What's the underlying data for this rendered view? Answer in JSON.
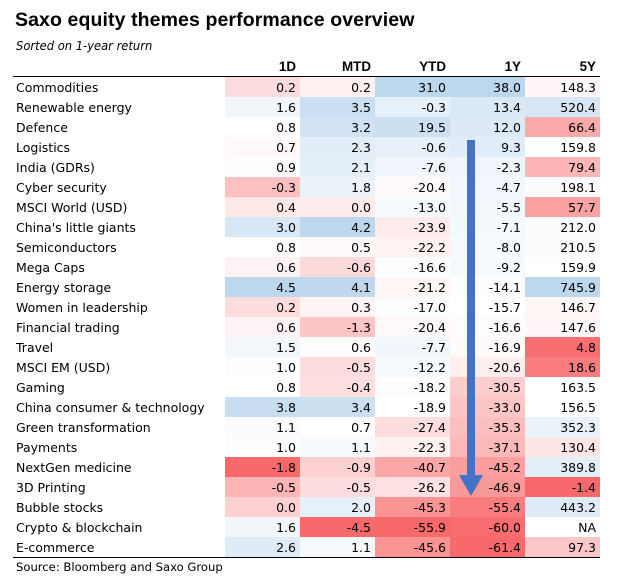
{
  "title": "Saxo equity themes performance overview",
  "subtitle": "Sorted on 1-year return",
  "source": "Source: Bloomberg and Saxo Group",
  "annotation": {
    "icon": "down-arrow-icon",
    "color": "#4472c4"
  },
  "colors": {
    "positive": "#bdd7ee",
    "neutral": "#ffffff",
    "negative": "#f8696b"
  },
  "columns": [
    "1D",
    "MTD",
    "YTD",
    "1Y",
    "5Y"
  ],
  "rows": [
    {
      "theme": "Commodities",
      "values": [
        "0.2",
        "0.2",
        "31.0",
        "38.0",
        "148.3"
      ]
    },
    {
      "theme": "Renewable energy",
      "values": [
        "1.6",
        "3.5",
        "-0.3",
        "13.4",
        "520.4"
      ]
    },
    {
      "theme": "Defence",
      "values": [
        "0.8",
        "3.2",
        "19.5",
        "12.0",
        "66.4"
      ]
    },
    {
      "theme": "Logistics",
      "values": [
        "0.7",
        "2.3",
        "-0.6",
        "9.3",
        "159.8"
      ]
    },
    {
      "theme": "India (GDRs)",
      "values": [
        "0.9",
        "2.1",
        "-7.6",
        "-2.3",
        "79.4"
      ]
    },
    {
      "theme": "Cyber security",
      "values": [
        "-0.3",
        "1.8",
        "-20.4",
        "-4.7",
        "198.1"
      ]
    },
    {
      "theme": "MSCI World (USD)",
      "values": [
        "0.4",
        "0.0",
        "-13.0",
        "-5.5",
        "57.7"
      ]
    },
    {
      "theme": "China's little giants",
      "values": [
        "3.0",
        "4.2",
        "-23.9",
        "-7.1",
        "212.0"
      ]
    },
    {
      "theme": "Semiconductors",
      "values": [
        "0.8",
        "0.5",
        "-22.2",
        "-8.0",
        "210.5"
      ]
    },
    {
      "theme": "Mega Caps",
      "values": [
        "0.6",
        "-0.6",
        "-16.6",
        "-9.2",
        "159.9"
      ]
    },
    {
      "theme": "Energy storage",
      "values": [
        "4.5",
        "4.1",
        "-21.2",
        "-14.1",
        "745.9"
      ]
    },
    {
      "theme": "Women in leadership",
      "values": [
        "0.2",
        "0.3",
        "-17.0",
        "-15.7",
        "146.7"
      ]
    },
    {
      "theme": "Financial trading",
      "values": [
        "0.6",
        "-1.3",
        "-20.4",
        "-16.6",
        "147.6"
      ]
    },
    {
      "theme": "Travel",
      "values": [
        "1.5",
        "0.6",
        "-7.7",
        "-16.9",
        "4.8"
      ]
    },
    {
      "theme": "MSCI EM (USD)",
      "values": [
        "1.0",
        "-0.5",
        "-12.2",
        "-20.6",
        "18.6"
      ]
    },
    {
      "theme": "Gaming",
      "values": [
        "0.8",
        "-0.4",
        "-18.2",
        "-30.5",
        "163.5"
      ]
    },
    {
      "theme": "China consumer & technology",
      "values": [
        "3.8",
        "3.4",
        "-18.9",
        "-33.0",
        "156.5"
      ]
    },
    {
      "theme": "Green transformation",
      "values": [
        "1.1",
        "0.7",
        "-27.4",
        "-35.3",
        "352.3"
      ]
    },
    {
      "theme": "Payments",
      "values": [
        "1.0",
        "1.1",
        "-22.3",
        "-37.1",
        "130.4"
      ]
    },
    {
      "theme": "NextGen medicine",
      "values": [
        "-1.8",
        "-0.9",
        "-40.7",
        "-45.2",
        "389.8"
      ]
    },
    {
      "theme": "3D Printing",
      "values": [
        "-0.5",
        "-0.5",
        "-26.2",
        "-46.9",
        "-1.4"
      ]
    },
    {
      "theme": "Bubble stocks",
      "values": [
        "0.0",
        "2.0",
        "-45.3",
        "-55.4",
        "443.2"
      ]
    },
    {
      "theme": "Crypto & blockchain",
      "values": [
        "1.6",
        "-4.5",
        "-55.9",
        "-60.0",
        "NA"
      ]
    },
    {
      "theme": "E-commerce",
      "values": [
        "2.6",
        "1.1",
        "-45.6",
        "-61.4",
        "97.3"
      ]
    }
  ]
}
